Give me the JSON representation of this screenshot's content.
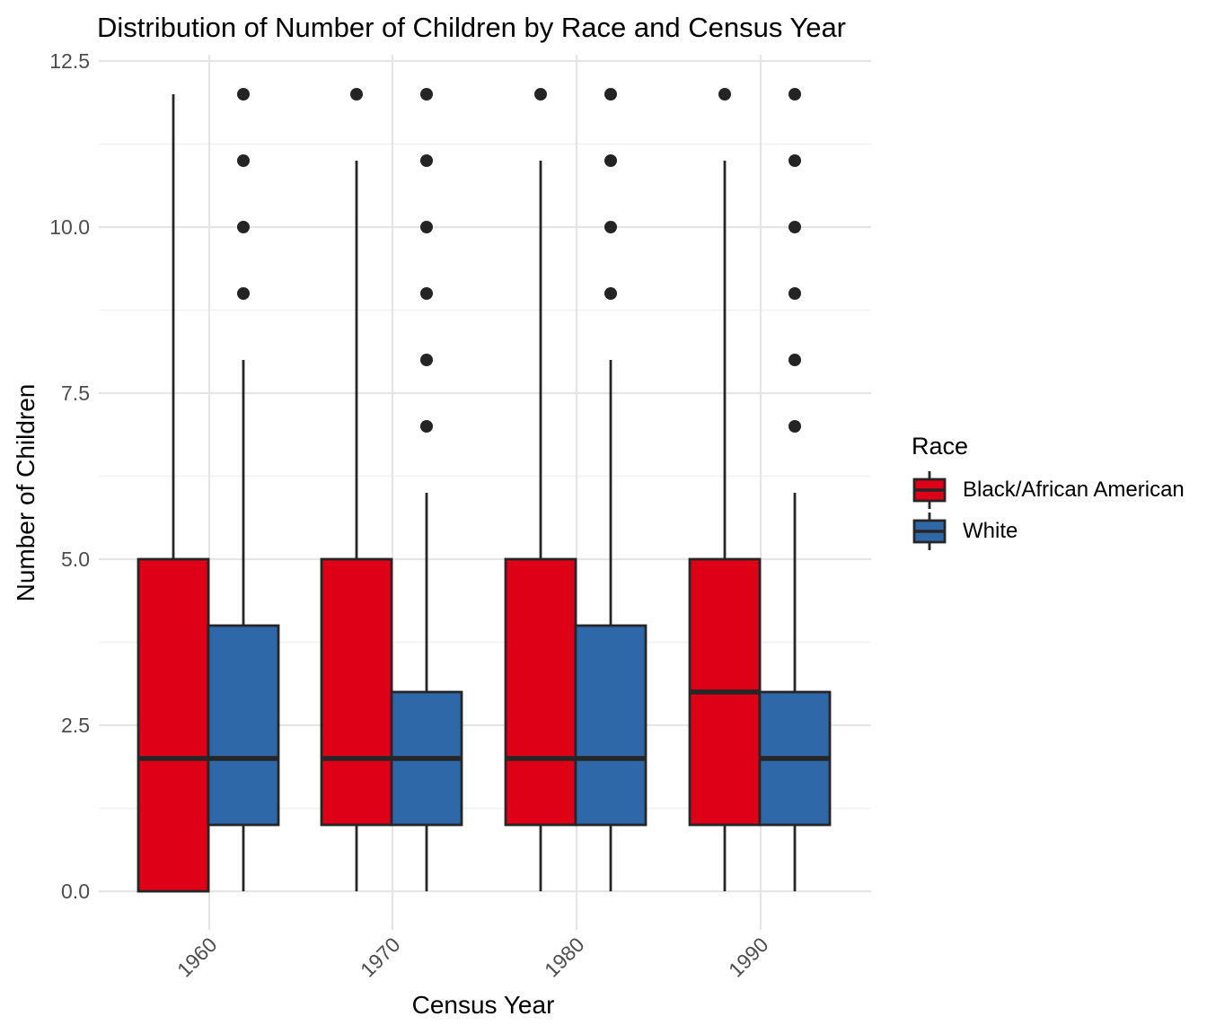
{
  "chart_data": {
    "type": "grouped_boxplot",
    "title": "Distribution of Number of Children by Race and Census Year",
    "xlabel": "Census Year",
    "ylabel": "Number of Children",
    "categories": [
      "1960",
      "1970",
      "1980",
      "1990"
    ],
    "y_ticks": [
      "0.0",
      "2.5",
      "5.0",
      "7.5",
      "10.0",
      "12.5"
    ],
    "y_tick_values": [
      0,
      2.5,
      5,
      7.5,
      10,
      12.5
    ],
    "y_minor_tick_values": [
      1.25,
      3.75,
      6.25,
      8.75,
      11.25
    ],
    "ylim": [
      -0.6,
      12.6
    ],
    "grid": true,
    "legend_position": "right",
    "legend_title": "Race",
    "series": [
      {
        "name": "Black/African American",
        "color": "#DD0016",
        "boxes": [
          {
            "category": "1960",
            "whisker_low": 0,
            "q1": 0,
            "median": 2,
            "q3": 5,
            "whisker_high": 12,
            "outliers": []
          },
          {
            "category": "1970",
            "whisker_low": 0,
            "q1": 1,
            "median": 2,
            "q3": 5,
            "whisker_high": 11,
            "outliers": [
              12
            ]
          },
          {
            "category": "1980",
            "whisker_low": 0,
            "q1": 1,
            "median": 2,
            "q3": 5,
            "whisker_high": 11,
            "outliers": [
              12
            ]
          },
          {
            "category": "1990",
            "whisker_low": 0,
            "q1": 1,
            "median": 3,
            "q3": 5,
            "whisker_high": 11,
            "outliers": [
              12
            ]
          }
        ]
      },
      {
        "name": "White",
        "color": "#2F68A8",
        "boxes": [
          {
            "category": "1960",
            "whisker_low": 0,
            "q1": 1,
            "median": 2,
            "q3": 4,
            "whisker_high": 8,
            "outliers": [
              9,
              10,
              11,
              12
            ]
          },
          {
            "category": "1970",
            "whisker_low": 0,
            "q1": 1,
            "median": 2,
            "q3": 3,
            "whisker_high": 6,
            "outliers": [
              7,
              8,
              9,
              10,
              11,
              12
            ]
          },
          {
            "category": "1980",
            "whisker_low": 0,
            "q1": 1,
            "median": 2,
            "q3": 4,
            "whisker_high": 8,
            "outliers": [
              9,
              10,
              11,
              12
            ]
          },
          {
            "category": "1990",
            "whisker_low": 0,
            "q1": 1,
            "median": 2,
            "q3": 3,
            "whisker_high": 6,
            "outliers": [
              7,
              8,
              9,
              10,
              11,
              12
            ]
          }
        ]
      }
    ],
    "style": {
      "background": "#FFFFFF",
      "grid_major_color": "#E5E5E5",
      "grid_minor_color": "#F0F0F0",
      "box_border_color": "#262626",
      "point_color": "#242424",
      "axis_text_color": "#4D4D4D",
      "title_color": "#000000"
    }
  },
  "legend": {
    "title": "Race",
    "items": [
      {
        "label": "Black/African American",
        "color": "#DD0016"
      },
      {
        "label": "White",
        "color": "#2F68A8"
      }
    ]
  }
}
